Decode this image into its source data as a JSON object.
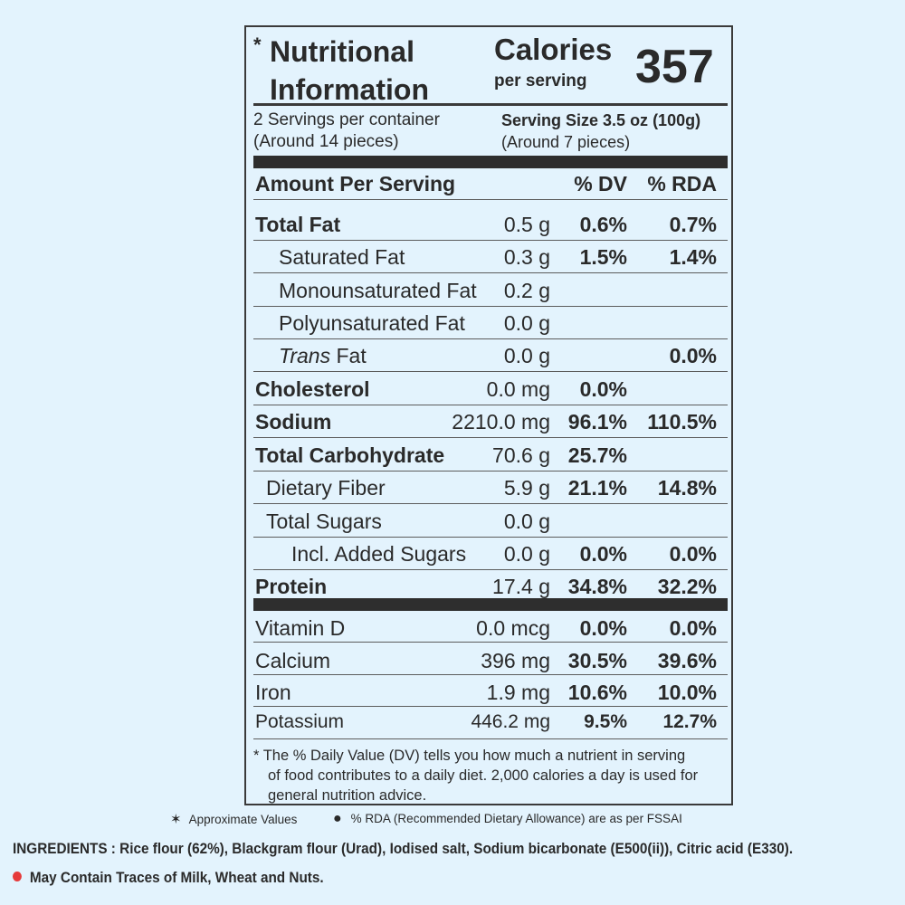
{
  "header": {
    "title_line1": "Nutritional",
    "title_line2": "Information",
    "star_glyph": "*",
    "calories_label": "Calories",
    "calories_sub": "per serving",
    "calories_value": "357"
  },
  "servings": {
    "per_container": "2 Servings per container",
    "per_container_note": "(Around 14 pieces)",
    "serving_size": "Serving Size 3.5 oz (100g)",
    "serving_size_note": "(Around 7 pieces)"
  },
  "table_header": {
    "amount": "Amount Per Serving",
    "dv": "% DV",
    "rda": "% RDA"
  },
  "nutrients": [
    {
      "name": "Total Fat",
      "amount": "0.5 g",
      "dv": "0.6%",
      "rda": "0.7%"
    },
    {
      "name": "Saturated Fat",
      "amount": "0.3 g",
      "dv": "1.5%",
      "rda": "1.4%"
    },
    {
      "name": "Monounsaturated Fat",
      "amount": "0.2 g",
      "dv": "",
      "rda": ""
    },
    {
      "name": "Polyunsaturated Fat",
      "amount": "0.0 g",
      "dv": "",
      "rda": ""
    },
    {
      "name_italic": "Trans",
      "name_rest": " Fat",
      "amount": "0.0 g",
      "dv": "",
      "rda": "0.0%"
    },
    {
      "name": "Cholesterol",
      "amount": "0.0 mg",
      "dv": "0.0%",
      "rda": ""
    },
    {
      "name": "Sodium",
      "amount": "2210.0 mg",
      "dv": "96.1%",
      "rda": "110.5%"
    },
    {
      "name": "Total Carbohydrate",
      "amount": "70.6 g",
      "dv": "25.7%",
      "rda": ""
    },
    {
      "name": "Dietary Fiber",
      "amount": "5.9 g",
      "dv": "21.1%",
      "rda": "14.8%"
    },
    {
      "name": "Total Sugars",
      "amount": "0.0 g",
      "dv": "",
      "rda": ""
    },
    {
      "name": "Incl. Added Sugars",
      "amount": "0.0 g",
      "dv": "0.0%",
      "rda": "0.0%"
    },
    {
      "name": "Protein",
      "amount": "17.4 g",
      "dv": "34.8%",
      "rda": "32.2%"
    }
  ],
  "vitamins": [
    {
      "name": "Vitamin D",
      "amount": "0.0 mcg",
      "dv": "0.0%",
      "rda": "0.0%"
    },
    {
      "name": "Calcium",
      "amount": "396 mg",
      "dv": "30.5%",
      "rda": "39.6%"
    },
    {
      "name": "Iron",
      "amount": "1.9 mg",
      "dv": "10.6%",
      "rda": "10.0%"
    },
    {
      "name": "Potassium",
      "amount": "446.2 mg",
      "dv": "9.5%",
      "rda": "12.7%"
    }
  ],
  "footnote": {
    "line1": "* The % Daily Value (DV) tells you how much a nutrient in serving",
    "line2": "of food contributes to a daily diet. 2,000 calories a day is used for",
    "line3": "general nutrition advice."
  },
  "legend": {
    "approx_glyph": "✶",
    "approx": "Approximate Values",
    "rda_glyph": "●",
    "rda_note": "% RDA (Recommended Dietary Allowance) are as per FSSAI"
  },
  "ingredients": "INGREDIENTS : Rice flour (62%), Blackgram flour (Urad), Iodised salt, Sodium bicarbonate (E500(ii)), Citric acid (E330).",
  "allergen": {
    "text": "May Contain Traces of Milk, Wheat and Nuts.",
    "dot_color": "#e63a3a"
  },
  "colors": {
    "background": "#e3f3fd",
    "text": "#2a2a2a"
  }
}
